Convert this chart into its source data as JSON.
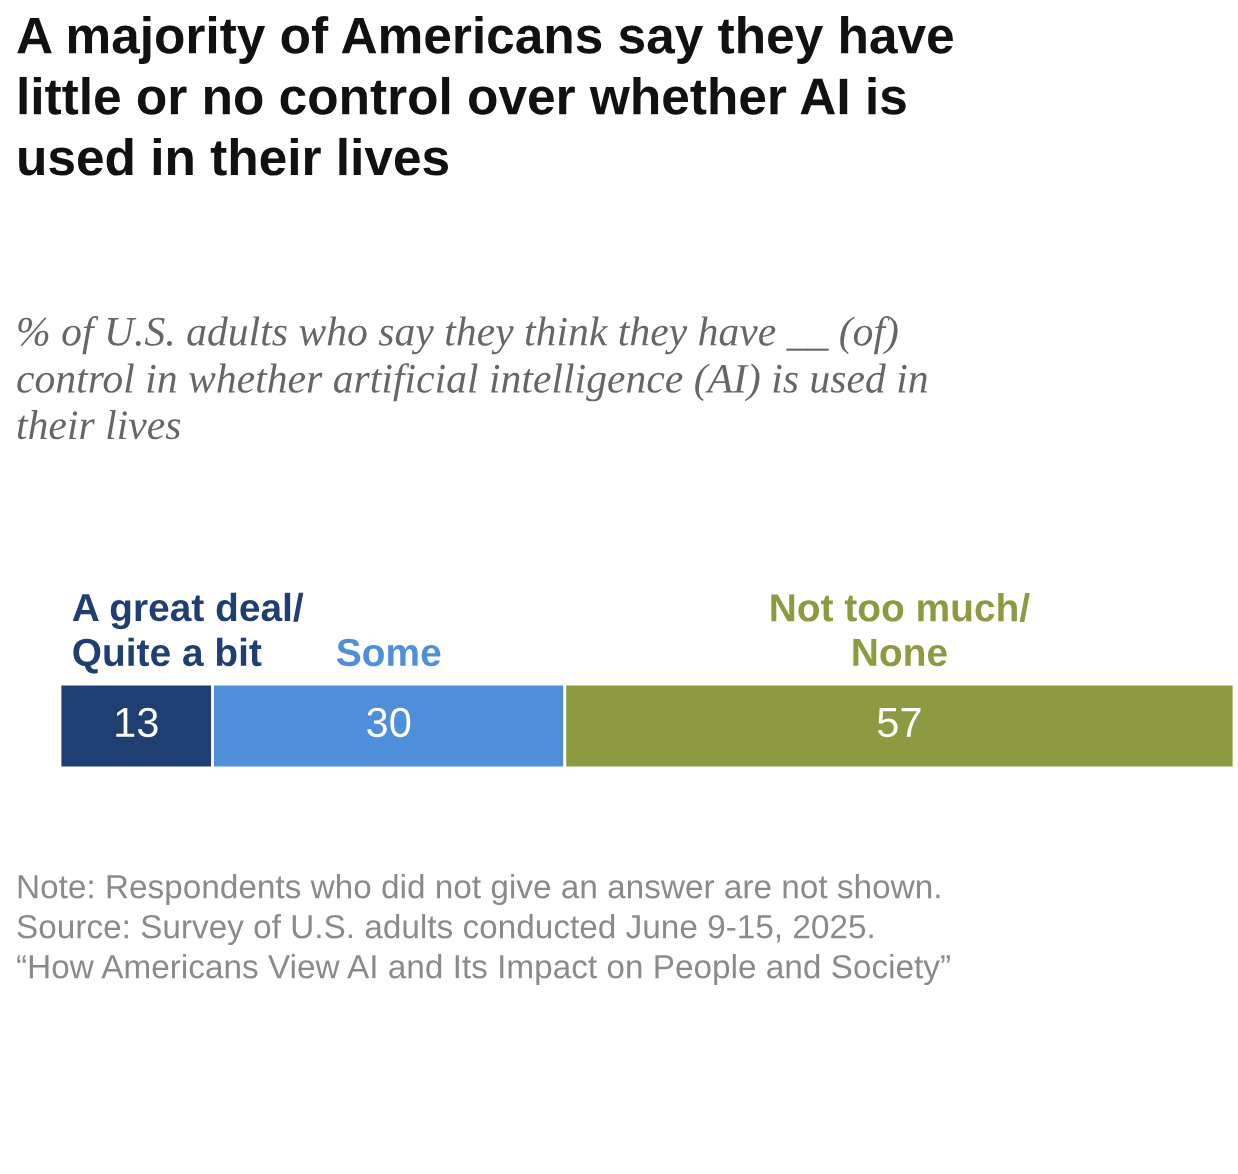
{
  "chart_data": {
    "type": "bar",
    "orientation": "horizontal",
    "stacked": true,
    "title": "A majority of Americans say they have\nlittle or no control over whether AI is\nused in their lives",
    "subtitle": "% of U.S. adults who say they think they have __ (of)\ncontrol in whether artificial intelligence (AI) is used in\ntheir lives",
    "categories": [
      null
    ],
    "series": [
      {
        "name": "A great deal/\nQuite a bit",
        "color": "#1f3f73",
        "values": [
          13
        ]
      },
      {
        "name": "Some",
        "color": "#4f8fd9",
        "values": [
          30
        ]
      },
      {
        "name": "Not too much/\nNone",
        "color": "#8d9a40",
        "values": [
          57
        ]
      }
    ],
    "data_labels": true,
    "legend": "top",
    "tick_labels": false,
    "annotations": [
      "Note: Respondents who did not give an answer are not shown.",
      "Source: Survey of U.S. adults conducted June 9-15, 2025.",
      "“How Americans View AI and Its Impact on People and Society”"
    ]
  }
}
